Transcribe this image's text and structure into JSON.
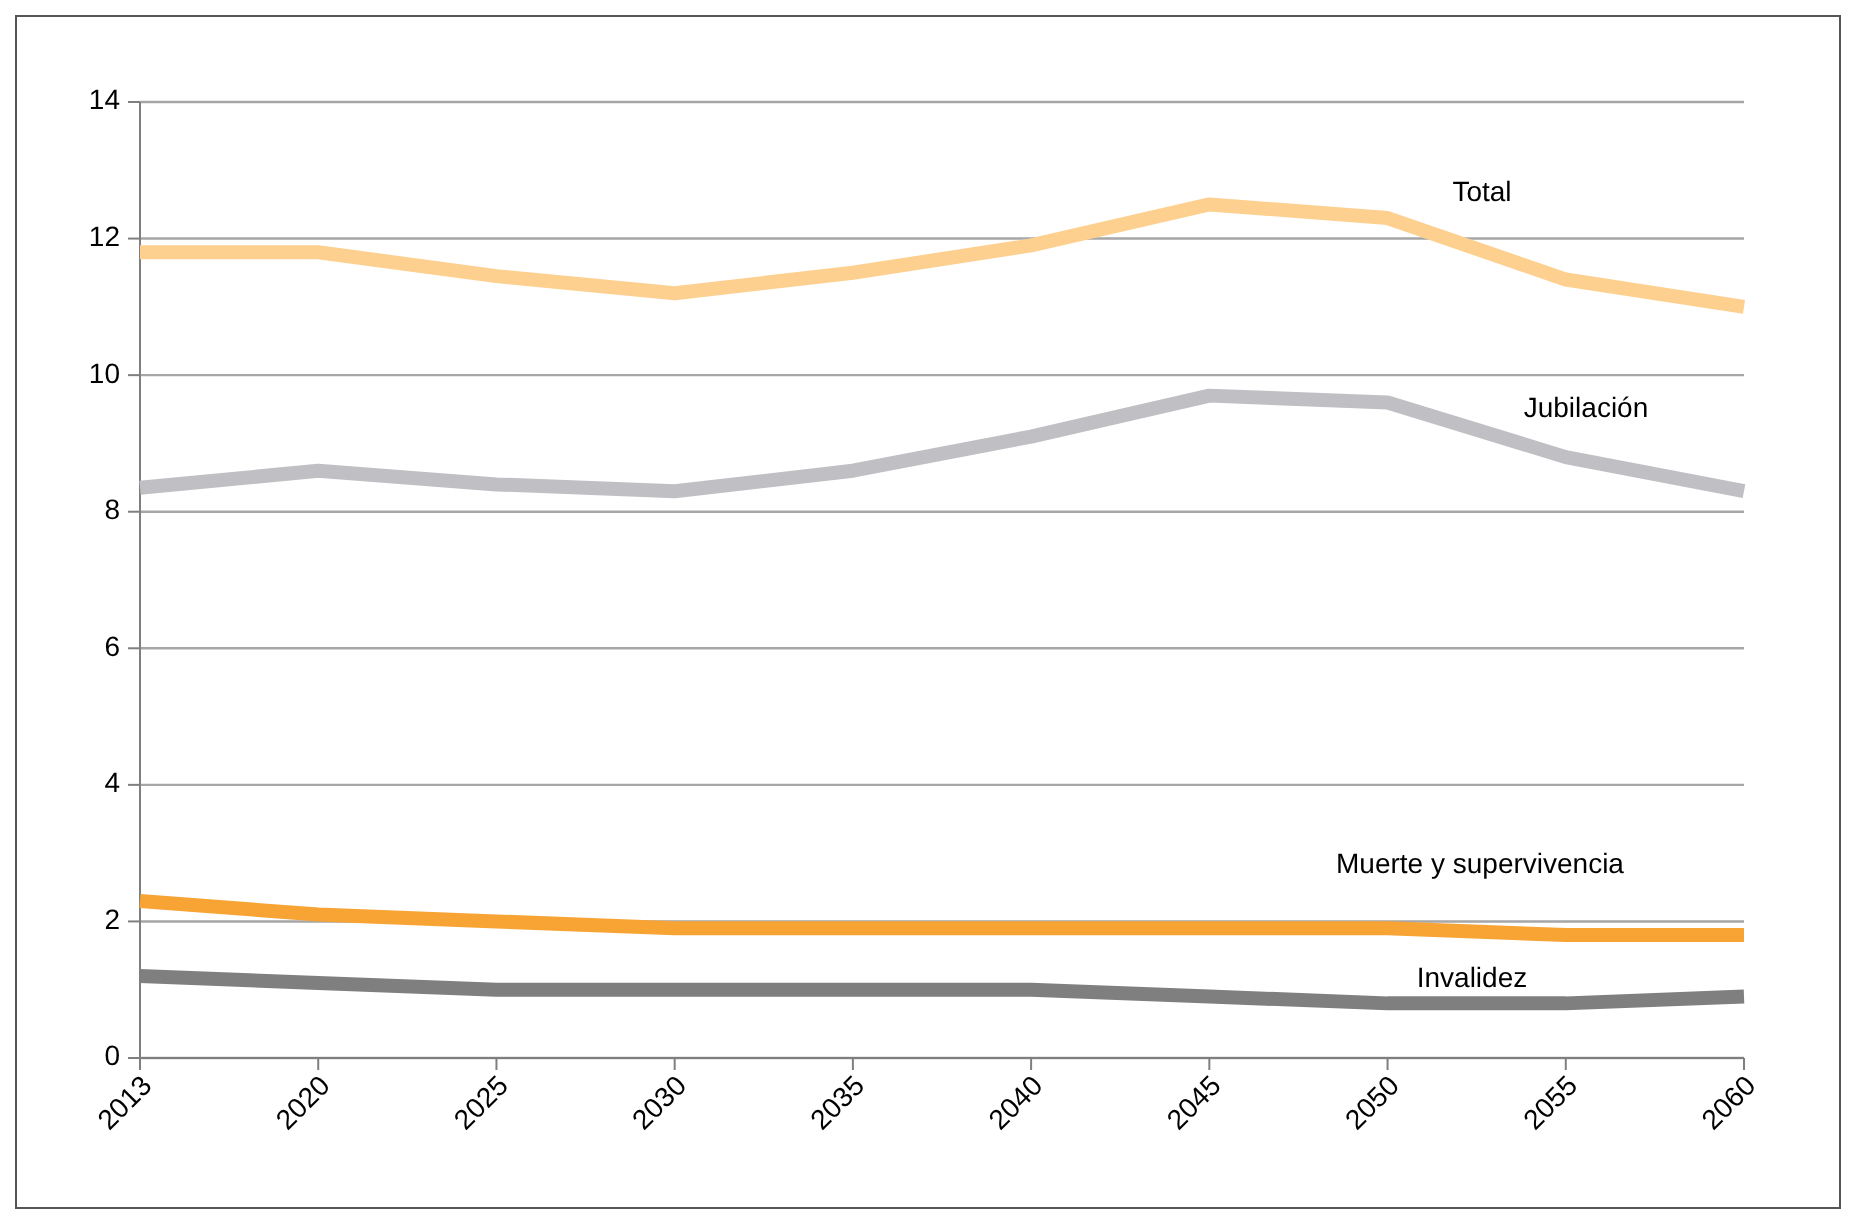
{
  "chart_data": {
    "type": "line",
    "categories": [
      "2013",
      "2020",
      "2025",
      "2030",
      "2035",
      "2040",
      "2045",
      "2050",
      "2055",
      "2060"
    ],
    "series": [
      {
        "name": "Total",
        "color": "#fdd08f",
        "values": [
          11.8,
          11.8,
          11.45,
          11.2,
          11.5,
          11.9,
          12.5,
          12.3,
          11.4,
          11.0
        ]
      },
      {
        "name": "Jubilación",
        "color": "#c0bfc4",
        "values": [
          8.35,
          8.6,
          8.4,
          8.3,
          8.6,
          9.1,
          9.7,
          9.6,
          8.8,
          8.3
        ]
      },
      {
        "name": "Muerte y supervivencia",
        "color": "#f7a434",
        "values": [
          2.3,
          2.1,
          2.0,
          1.9,
          1.9,
          1.9,
          1.9,
          1.9,
          1.8,
          1.8
        ]
      },
      {
        "name": "Invalidez",
        "color": "#7f7f7f",
        "values": [
          1.2,
          1.1,
          1.0,
          1.0,
          1.0,
          1.0,
          0.9,
          0.8,
          0.8,
          0.9
        ]
      }
    ],
    "ylim": [
      0,
      14
    ],
    "yticks": [
      0,
      2,
      4,
      6,
      8,
      10,
      12,
      14
    ],
    "grid": "y",
    "marker": "none",
    "line_style": "solid",
    "legend": false
  }
}
